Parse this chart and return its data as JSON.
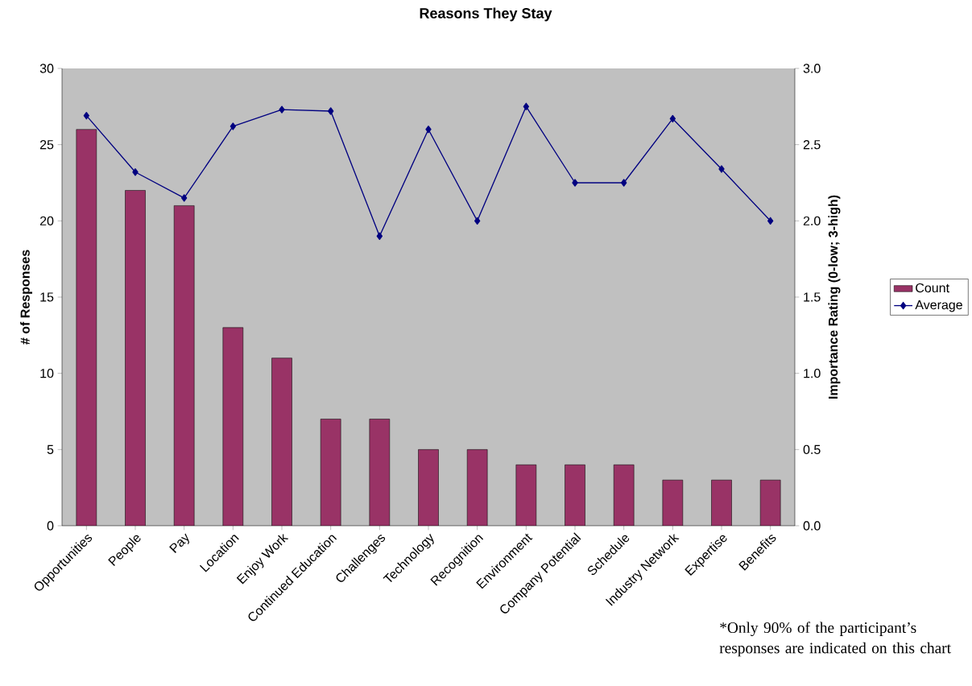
{
  "chart_data": {
    "type": "bar",
    "title": "Reasons They Stay",
    "ylabel": "# of Responses",
    "y2label": "Importance Rating (0-low; 3-high)",
    "categories": [
      "Opportunities",
      "People",
      "Pay",
      "Location",
      "Enjoy Work",
      "Continued Education",
      "Challenges",
      "Technology",
      "Recognition",
      "Environment",
      "Company Potential",
      "Schedule",
      "Industry Network",
      "Expertise",
      "Benefits"
    ],
    "series": [
      {
        "name": "Count",
        "color": "#993366",
        "values": [
          26,
          22,
          21,
          13,
          11,
          7,
          7,
          5,
          5,
          4,
          4,
          4,
          3,
          3,
          3
        ]
      },
      {
        "name": "Average",
        "type": "line",
        "axis": "y2",
        "color": "#000080",
        "values": [
          2.69,
          2.32,
          2.15,
          2.62,
          2.73,
          2.72,
          1.9,
          2.6,
          2.0,
          2.75,
          2.25,
          2.25,
          2.67,
          2.34,
          2.0
        ]
      }
    ],
    "ylim": [
      0,
      30
    ],
    "yticks": [
      0,
      5,
      10,
      15,
      20,
      25,
      30
    ],
    "y2lim": [
      0,
      3
    ],
    "y2ticks": [
      {
        "value": 0,
        "label": "0.0"
      },
      {
        "value": 0.5,
        "label": "0.5"
      },
      {
        "value": 1,
        "label": "1.0"
      },
      {
        "value": 1.5,
        "label": "1.5"
      },
      {
        "value": 2,
        "label": "2.0"
      },
      {
        "value": 2.5,
        "label": "2.5"
      },
      {
        "value": 3,
        "label": "3.0"
      }
    ],
    "marker": "diamond",
    "legend": "right",
    "annotations": [
      "*Only 90% of the participant’s responses are indicated on this chart"
    ]
  }
}
